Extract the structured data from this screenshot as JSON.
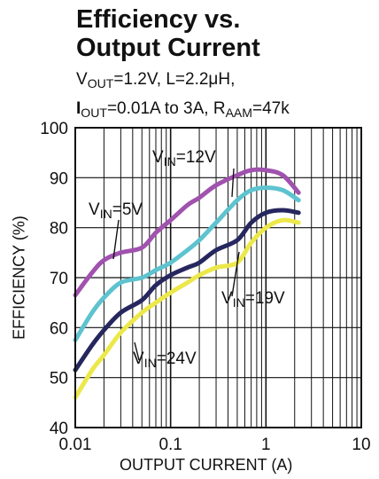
{
  "header": {
    "title_line1": "Efficiency vs.",
    "title_line2": "Output Current",
    "cond1": {
      "v": "V",
      "out_sub": "OUT",
      "rest": "=1.2V, L=2.2μH,"
    },
    "cond2": {
      "i": "I",
      "out_sub": "OUT",
      "mid": "=0.01A to 3A, R",
      "aam_sub": "AAM",
      "rest": "=47k"
    }
  },
  "colors": {
    "vin5": "#a052ae",
    "vin12": "#5ec3cf",
    "vin19": "#27275f",
    "vin24": "#ece84a",
    "grid": "#111111"
  },
  "chart_data": {
    "type": "line",
    "title": "",
    "xlabel": "OUTPUT CURRENT (A)",
    "ylabel": "EFFICIENCY (%)",
    "xscale": "log",
    "xlim": [
      0.01,
      10
    ],
    "ylim": [
      40,
      100
    ],
    "grid": true,
    "x_tick_labels": [
      "0.01",
      "0.1",
      "1",
      "10"
    ],
    "y_tick_labels": [
      "40",
      "50",
      "60",
      "70",
      "80",
      "90",
      "100"
    ],
    "series": [
      {
        "id": "vin5",
        "label_v": "V",
        "label_sub": "IN",
        "label_rest": "=5V",
        "x": [
          0.01,
          0.015,
          0.02,
          0.03,
          0.05,
          0.07,
          0.1,
          0.15,
          0.2,
          0.3,
          0.5,
          0.7,
          1.0,
          1.5,
          2.2
        ],
        "y": [
          66.5,
          71,
          73.5,
          75,
          76,
          79,
          81.5,
          84.5,
          86,
          88.5,
          90.5,
          91.5,
          91.5,
          90.5,
          87
        ]
      },
      {
        "id": "vin12",
        "label_v": "V",
        "label_sub": "IN",
        "label_rest": "=12V",
        "x": [
          0.01,
          0.015,
          0.02,
          0.03,
          0.05,
          0.07,
          0.1,
          0.15,
          0.2,
          0.3,
          0.5,
          0.7,
          1.0,
          1.5,
          2.2
        ],
        "y": [
          57.5,
          63,
          66,
          69,
          70,
          71.5,
          73,
          75.5,
          77.5,
          81,
          85.5,
          87.5,
          88,
          87.5,
          85.5
        ]
      },
      {
        "id": "vin19",
        "label_v": "V",
        "label_sub": "IN",
        "label_rest": "=19V",
        "x": [
          0.01,
          0.015,
          0.02,
          0.03,
          0.05,
          0.07,
          0.1,
          0.15,
          0.2,
          0.3,
          0.5,
          0.7,
          1.0,
          1.5,
          2.2
        ],
        "y": [
          51.5,
          56.5,
          59.5,
          63,
          65.5,
          68.5,
          70.5,
          72,
          73,
          75.5,
          77.5,
          81,
          83,
          83.5,
          83
        ]
      },
      {
        "id": "vin24",
        "label_v": "V",
        "label_sub": "IN",
        "label_rest": "=24V",
        "x": [
          0.01,
          0.015,
          0.02,
          0.03,
          0.05,
          0.07,
          0.1,
          0.15,
          0.2,
          0.3,
          0.5,
          0.7,
          1.0,
          1.5,
          2.2
        ],
        "y": [
          46,
          51.5,
          54.5,
          59,
          63,
          65,
          67,
          69,
          70.5,
          72,
          73,
          77,
          80,
          81.5,
          81
        ]
      }
    ]
  }
}
